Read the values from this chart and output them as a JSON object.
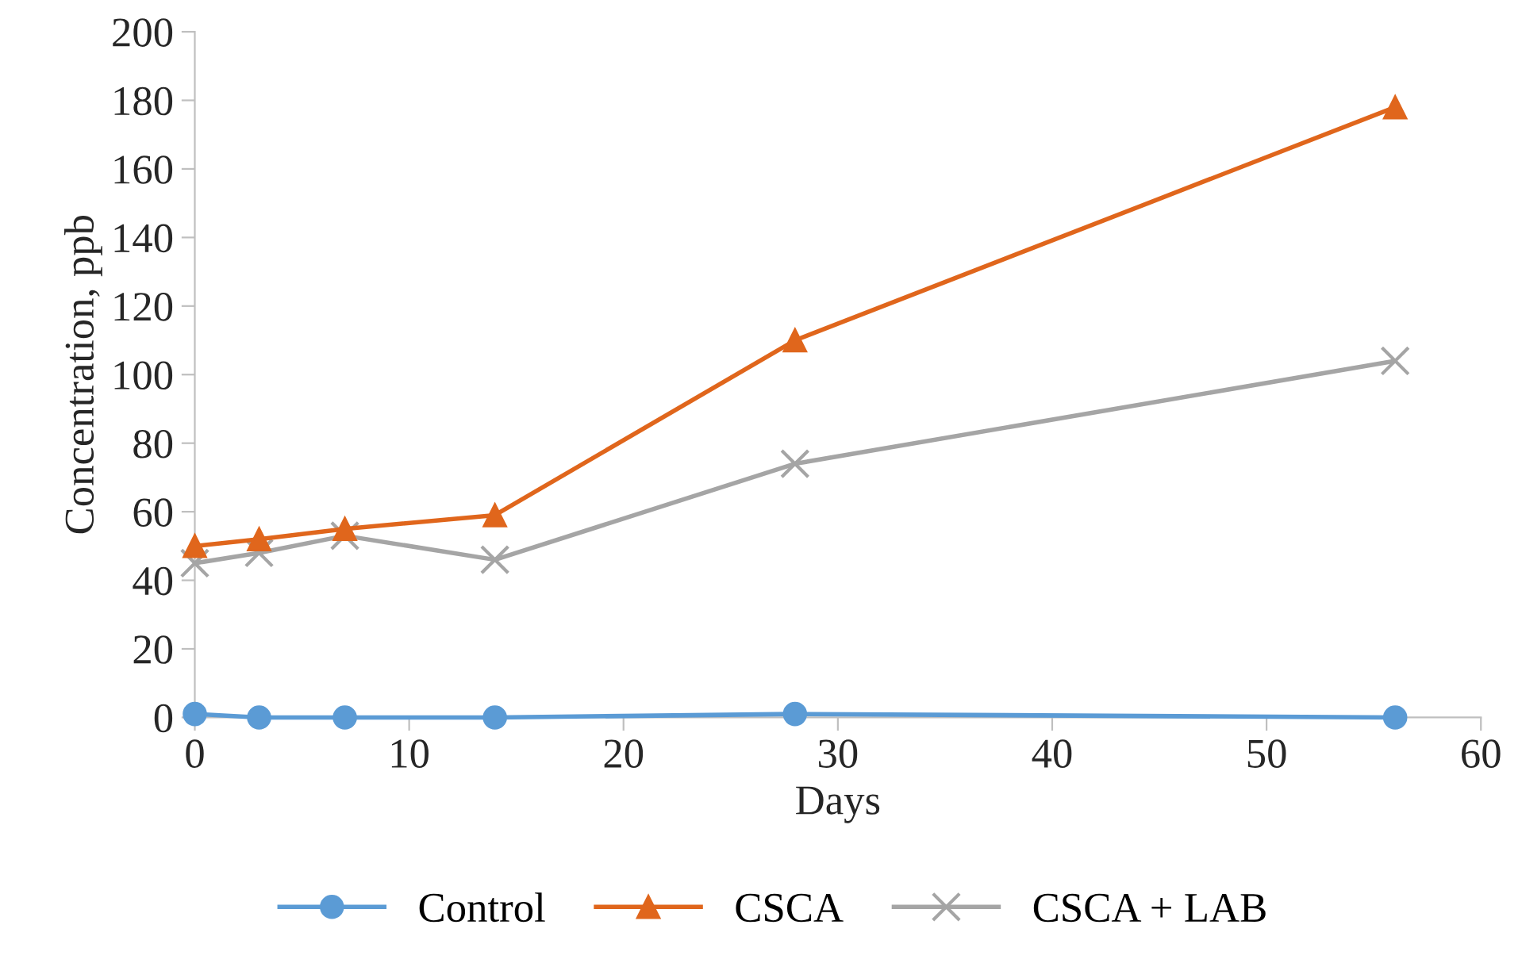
{
  "chart_data": {
    "type": "line",
    "xlabel": "Days",
    "ylabel": "Concentration, ppb",
    "x": [
      0,
      3,
      7,
      14,
      28,
      56
    ],
    "series": [
      {
        "name": "Control",
        "color": "#5b9bd5",
        "marker": "circle",
        "values": [
          1,
          0,
          0,
          0,
          1,
          0
        ]
      },
      {
        "name": "CSCA",
        "color": "#e0661c",
        "marker": "triangle",
        "values": [
          50,
          52,
          55,
          59,
          110,
          178
        ]
      },
      {
        "name": "CSCA + LAB",
        "color": "#a5a5a5",
        "marker": "cross",
        "values": [
          45,
          48,
          53,
          46,
          74,
          104
        ]
      }
    ],
    "xlim": [
      0,
      60
    ],
    "xticks": [
      0,
      10,
      20,
      30,
      40,
      50,
      60
    ],
    "ylim": [
      0,
      200
    ],
    "yticks": [
      0,
      20,
      40,
      60,
      80,
      100,
      120,
      140,
      160,
      180,
      200
    ],
    "grid": false,
    "legend": "bottom",
    "line_style": "solid"
  }
}
